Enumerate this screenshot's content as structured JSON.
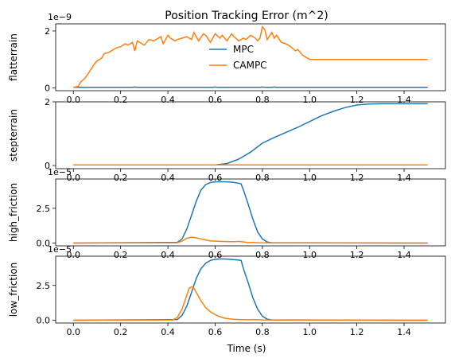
{
  "figure": {
    "title": "Position Tracking Error (m^2)",
    "xlabel": "Time (s)"
  },
  "colors": {
    "MPC": "#1f77b4",
    "CAMPC": "#ff7f0e"
  },
  "chart_data": [
    {
      "type": "line",
      "title": "Position Tracking Error (m^2)",
      "ylabel": "flatterrain",
      "scale_label": "1e−9",
      "xlim": [
        -0.075,
        1.575
      ],
      "ylim": [
        -0.1,
        2.25
      ],
      "x_ticks": [
        "0.0",
        "0.2",
        "0.4",
        "0.6",
        "0.8",
        "1.0",
        "1.2",
        "1.4"
      ],
      "y_ticks": [
        "0",
        "2"
      ],
      "legend": {
        "position": "center",
        "entries": [
          "MPC",
          "CAMPC"
        ]
      },
      "series": [
        {
          "name": "MPC",
          "x": [
            0,
            0.25,
            0.26,
            0.27,
            0.59,
            0.6,
            0.61,
            0.79,
            0.8,
            0.81,
            0.84,
            0.85,
            0.86,
            1.5
          ],
          "y": [
            0.02,
            0.02,
            0.03,
            0.02,
            0.02,
            0.03,
            0.02,
            0.02,
            0.03,
            0.02,
            0.02,
            0.03,
            0.02,
            0.02
          ]
        },
        {
          "name": "CAMPC",
          "x": [
            0,
            0.02,
            0.03,
            0.05,
            0.07,
            0.09,
            0.1,
            0.12,
            0.13,
            0.15,
            0.16,
            0.18,
            0.2,
            0.22,
            0.23,
            0.25,
            0.26,
            0.27,
            0.29,
            0.3,
            0.32,
            0.34,
            0.35,
            0.37,
            0.38,
            0.4,
            0.41,
            0.43,
            0.44,
            0.46,
            0.48,
            0.5,
            0.51,
            0.53,
            0.55,
            0.56,
            0.58,
            0.6,
            0.62,
            0.63,
            0.65,
            0.67,
            0.68,
            0.7,
            0.72,
            0.73,
            0.75,
            0.77,
            0.78,
            0.79,
            0.8,
            0.81,
            0.82,
            0.84,
            0.85,
            0.86,
            0.88,
            0.9,
            0.92,
            0.94,
            0.95,
            0.97,
            0.98,
            1.0,
            1.5
          ],
          "y": [
            0.02,
            0.05,
            0.2,
            0.35,
            0.6,
            0.85,
            0.95,
            1.05,
            1.2,
            1.25,
            1.3,
            1.4,
            1.45,
            1.55,
            1.5,
            1.6,
            1.3,
            1.65,
            1.55,
            1.5,
            1.7,
            1.65,
            1.7,
            1.8,
            1.55,
            1.85,
            1.75,
            1.65,
            1.7,
            1.75,
            1.8,
            1.7,
            1.95,
            1.65,
            1.9,
            1.85,
            1.6,
            1.9,
            1.75,
            1.85,
            1.65,
            1.9,
            1.8,
            1.65,
            1.75,
            1.7,
            1.85,
            1.75,
            1.65,
            1.75,
            2.15,
            2.05,
            1.7,
            1.95,
            1.75,
            1.85,
            1.6,
            1.55,
            1.45,
            1.3,
            1.35,
            1.15,
            1.1,
            1.0,
            1.0
          ]
        }
      ]
    },
    {
      "type": "line",
      "ylabel": "stepterrain",
      "xlim": [
        -0.075,
        1.575
      ],
      "ylim": [
        -0.1,
        2.0
      ],
      "x_ticks": [
        "0.0",
        "0.2",
        "0.4",
        "0.6",
        "0.8",
        "1.0",
        "1.2",
        "1.4"
      ],
      "y_ticks": [
        "0",
        "2"
      ],
      "series": [
        {
          "name": "MPC",
          "x": [
            0,
            0.6,
            0.65,
            0.7,
            0.75,
            0.8,
            0.85,
            0.9,
            0.95,
            1.0,
            1.05,
            1.1,
            1.15,
            1.2,
            1.25,
            1.3,
            1.5
          ],
          "y": [
            0.02,
            0.02,
            0.06,
            0.2,
            0.42,
            0.7,
            0.88,
            1.04,
            1.2,
            1.38,
            1.56,
            1.7,
            1.82,
            1.9,
            1.93,
            1.94,
            1.94
          ]
        },
        {
          "name": "CAMPC",
          "x": [
            0,
            1.5
          ],
          "y": [
            0.02,
            0.02
          ]
        }
      ]
    },
    {
      "type": "line",
      "ylabel": "high_friction",
      "scale_label": "1e−5",
      "xlim": [
        -0.075,
        1.575
      ],
      "ylim": [
        -0.2,
        4.6
      ],
      "x_ticks": [
        "0.0",
        "0.2",
        "0.4",
        "0.6",
        "0.8",
        "1.0",
        "1.2",
        "1.4"
      ],
      "y_ticks": [
        "0.0",
        "2.5"
      ],
      "series": [
        {
          "name": "MPC",
          "x": [
            0,
            0.44,
            0.46,
            0.48,
            0.5,
            0.52,
            0.54,
            0.56,
            0.58,
            0.6,
            0.62,
            0.64,
            0.66,
            0.68,
            0.7,
            0.71,
            0.72,
            0.74,
            0.76,
            0.78,
            0.8,
            0.82,
            0.84,
            1.5
          ],
          "y": [
            0,
            0.05,
            0.3,
            1.0,
            2.0,
            3.0,
            3.8,
            4.2,
            4.35,
            4.4,
            4.4,
            4.4,
            4.38,
            4.35,
            4.3,
            4.25,
            3.8,
            2.8,
            1.7,
            0.8,
            0.3,
            0.08,
            0.02,
            0
          ]
        },
        {
          "name": "CAMPC",
          "x": [
            0,
            0.44,
            0.46,
            0.48,
            0.5,
            0.52,
            0.54,
            0.56,
            0.58,
            0.62,
            0.66,
            0.68,
            0.7,
            0.72,
            0.74,
            0.76,
            0.78,
            1.5
          ],
          "y": [
            0,
            0.02,
            0.15,
            0.35,
            0.42,
            0.38,
            0.3,
            0.22,
            0.15,
            0.12,
            0.1,
            0.1,
            0.12,
            0.08,
            0.03,
            0.05,
            0.02,
            0
          ]
        }
      ]
    },
    {
      "type": "line",
      "ylabel": "low_friction",
      "scale_label": "1e−5",
      "xlabel": "Time (s)",
      "xlim": [
        -0.075,
        1.575
      ],
      "ylim": [
        -0.2,
        4.6
      ],
      "x_ticks": [
        "0.0",
        "0.2",
        "0.4",
        "0.6",
        "0.8",
        "1.0",
        "1.2",
        "1.4"
      ],
      "y_ticks": [
        "0.0",
        "2.5"
      ],
      "series": [
        {
          "name": "MPC",
          "x": [
            0,
            0.44,
            0.46,
            0.48,
            0.5,
            0.52,
            0.54,
            0.56,
            0.58,
            0.6,
            0.62,
            0.64,
            0.66,
            0.68,
            0.7,
            0.71,
            0.72,
            0.74,
            0.76,
            0.78,
            0.8,
            0.82,
            0.84,
            1.5
          ],
          "y": [
            0,
            0.05,
            0.35,
            1.0,
            2.0,
            3.0,
            3.7,
            4.1,
            4.3,
            4.38,
            4.4,
            4.4,
            4.38,
            4.35,
            4.32,
            4.3,
            3.7,
            2.7,
            1.6,
            0.8,
            0.3,
            0.08,
            0.02,
            0
          ]
        },
        {
          "name": "CAMPC",
          "x": [
            0,
            0.42,
            0.44,
            0.46,
            0.48,
            0.49,
            0.5,
            0.51,
            0.52,
            0.54,
            0.56,
            0.58,
            0.6,
            0.62,
            0.64,
            0.66,
            0.68,
            0.7,
            0.72,
            0.74,
            0.76,
            0.8,
            1.5
          ],
          "y": [
            0,
            0.02,
            0.2,
            0.8,
            1.8,
            2.3,
            2.4,
            2.3,
            2.0,
            1.4,
            0.9,
            0.6,
            0.4,
            0.25,
            0.15,
            0.1,
            0.06,
            0.05,
            0.04,
            0.03,
            0.05,
            0.02,
            0
          ]
        }
      ]
    }
  ]
}
